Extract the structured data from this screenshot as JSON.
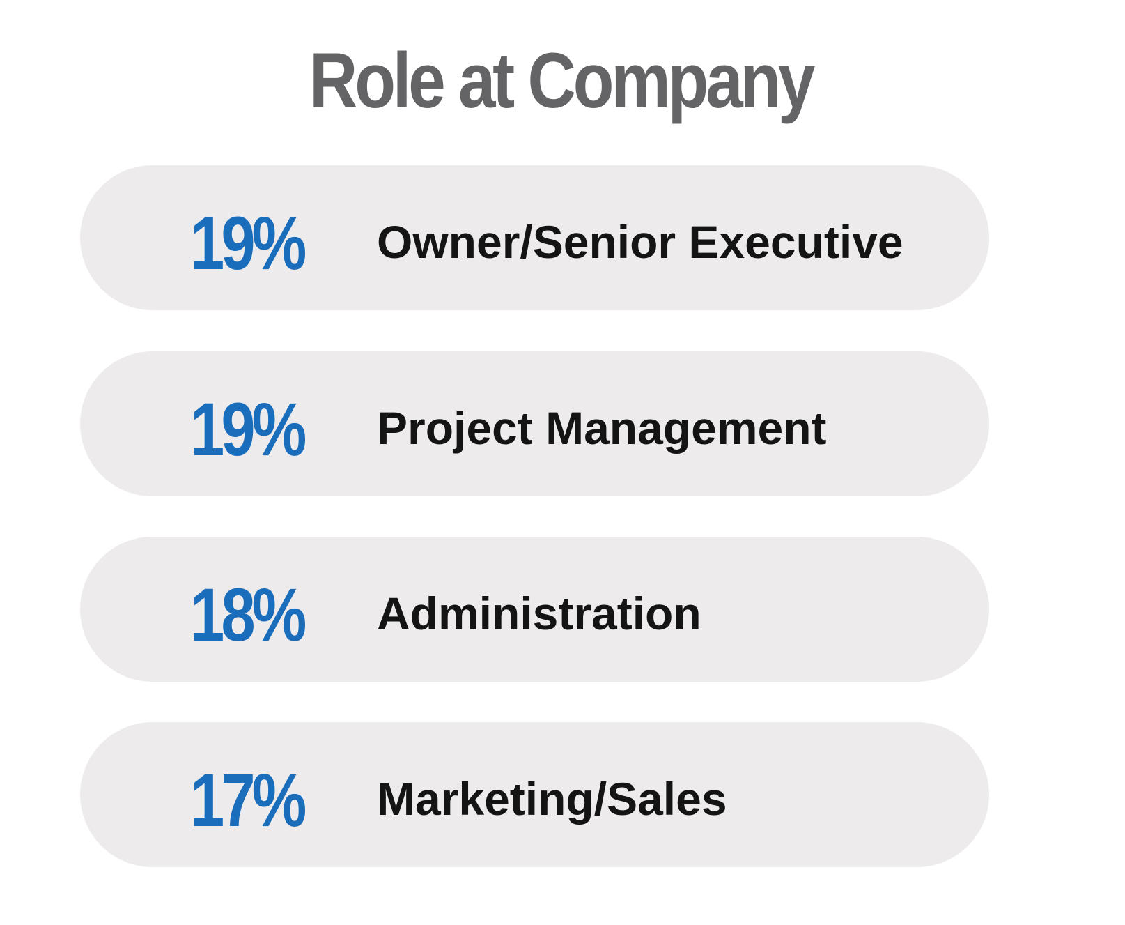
{
  "chart_data": {
    "type": "table",
    "title": "Role at Company",
    "rows": [
      {
        "value": 19,
        "value_label": "19%",
        "label": "Owner/Senior Executive"
      },
      {
        "value": 19,
        "value_label": "19%",
        "label": "Project Management"
      },
      {
        "value": 18,
        "value_label": "18%",
        "label": "Administration"
      },
      {
        "value": 17,
        "value_label": "17%",
        "label": "Marketing/Sales"
      }
    ],
    "colors": {
      "title": "#646466",
      "value": "#1a6dbb",
      "label": "#141414",
      "pill": "#edebec"
    }
  }
}
